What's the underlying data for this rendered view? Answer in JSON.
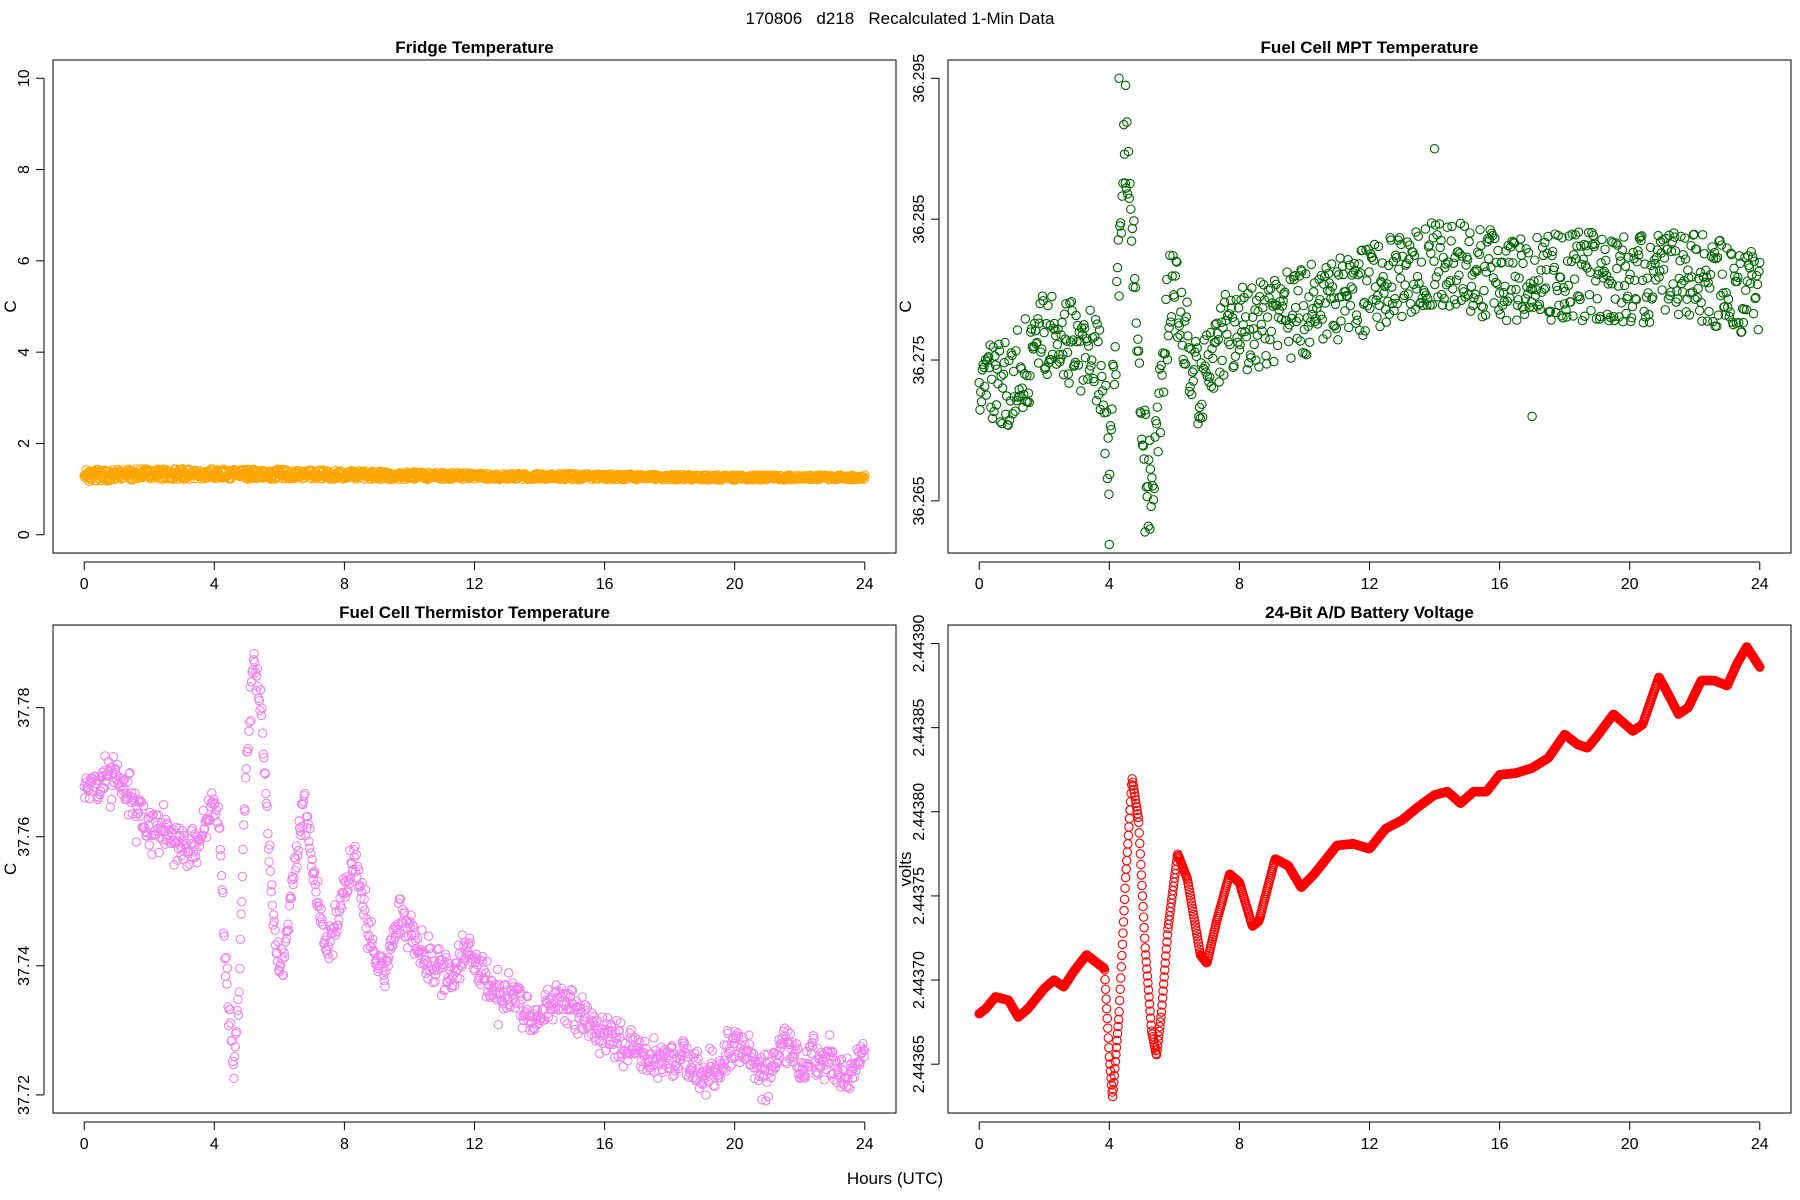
{
  "figure": {
    "title": "170806   d218   Recalculated 1-Min Data",
    "xlabel": "Hours (UTC)"
  },
  "chart_data": [
    {
      "id": "fridge",
      "type": "scatter",
      "title": "Fridge Temperature",
      "xlabel": "",
      "ylabel": "C",
      "xlim": [
        -0.96,
        24.96
      ],
      "ylim": [
        -0.4,
        10.4
      ],
      "xticks": [
        0,
        4,
        8,
        12,
        16,
        20,
        24
      ],
      "xtick_labels": [
        "0",
        "4",
        "8",
        "12",
        "16",
        "20",
        "24"
      ],
      "yticks": [
        0,
        2,
        4,
        6,
        8,
        10
      ],
      "ytick_labels": [
        "0",
        "2",
        "4",
        "6",
        "8",
        "10"
      ],
      "color": "#FFA500",
      "grid": false,
      "model": {
        "kind": "band",
        "x_range": [
          0,
          24
        ],
        "n": 1440,
        "trend": [
          [
            0,
            1.3
          ],
          [
            4,
            1.34
          ],
          [
            8,
            1.31
          ],
          [
            12,
            1.28
          ],
          [
            16,
            1.27
          ],
          [
            20,
            1.25
          ],
          [
            24,
            1.26
          ]
        ],
        "spread": [
          [
            0,
            0.13
          ],
          [
            6,
            0.11
          ],
          [
            12,
            0.07
          ],
          [
            24,
            0.05
          ]
        ]
      }
    },
    {
      "id": "mpt",
      "type": "scatter",
      "title": "Fuel Cell MPT Temperature",
      "xlabel": "",
      "ylabel": "C",
      "xlim": [
        -0.96,
        24.96
      ],
      "ylim": [
        36.2613,
        36.2963
      ],
      "xticks": [
        0,
        4,
        8,
        12,
        16,
        20,
        24
      ],
      "xtick_labels": [
        "0",
        "4",
        "8",
        "12",
        "16",
        "20",
        "24"
      ],
      "yticks": [
        36.265,
        36.275,
        36.285,
        36.295
      ],
      "ytick_labels": [
        "36.265",
        "36.275",
        "36.285",
        "36.295"
      ],
      "color": "#006400",
      "grid": false,
      "model": {
        "kind": "noisy",
        "x_range": [
          0,
          24
        ],
        "n": 1000,
        "noise": 0.0032,
        "noise_mode": "uniform",
        "trend": [
          [
            0,
            36.2735
          ],
          [
            1,
            36.2735
          ],
          [
            2,
            36.2765
          ],
          [
            3,
            36.2762
          ],
          [
            3.7,
            36.2748
          ],
          [
            4.0,
            36.268
          ],
          [
            4.25,
            36.279
          ],
          [
            4.45,
            36.2905
          ],
          [
            4.65,
            36.287
          ],
          [
            4.95,
            36.273
          ],
          [
            5.25,
            36.266
          ],
          [
            5.55,
            36.272
          ],
          [
            5.9,
            36.281
          ],
          [
            6.2,
            36.279
          ],
          [
            6.7,
            36.273
          ],
          [
            7.3,
            36.2765
          ],
          [
            8,
            36.277
          ],
          [
            10,
            36.2785
          ],
          [
            12,
            36.28
          ],
          [
            14,
            36.282
          ],
          [
            16,
            36.281
          ],
          [
            18,
            36.281
          ],
          [
            20,
            36.2808
          ],
          [
            22,
            36.281
          ],
          [
            24,
            36.2795
          ]
        ],
        "extremes": [
          [
            5.1,
            36.2628
          ],
          [
            5.2,
            36.2632
          ],
          [
            5.25,
            36.263
          ],
          [
            4.0,
            36.2619
          ],
          [
            4.3,
            36.295
          ],
          [
            4.5,
            36.2945
          ],
          [
            14.0,
            36.29
          ],
          [
            17.0,
            36.271
          ]
        ]
      }
    },
    {
      "id": "thermistor",
      "type": "scatter",
      "title": "Fuel Cell Thermistor Temperature",
      "xlabel": "",
      "ylabel": "C",
      "xlim": [
        -0.96,
        24.96
      ],
      "ylim": [
        37.7172,
        37.7928
      ],
      "xticks": [
        0,
        4,
        8,
        12,
        16,
        20,
        24
      ],
      "xtick_labels": [
        "0",
        "4",
        "8",
        "12",
        "16",
        "20",
        "24"
      ],
      "yticks": [
        37.72,
        37.74,
        37.76,
        37.78
      ],
      "ytick_labels": [
        "37.72",
        "37.74",
        "37.76",
        "37.78"
      ],
      "color": "#EE82EE",
      "grid": false,
      "model": {
        "kind": "noisy",
        "x_range": [
          0,
          24
        ],
        "n": 1200,
        "noise": 0.0022,
        "noise_mode": "normal",
        "trend": [
          [
            0,
            37.768
          ],
          [
            0.5,
            37.768
          ],
          [
            1,
            37.77
          ],
          [
            1.5,
            37.765
          ],
          [
            2,
            37.762
          ],
          [
            2.5,
            37.761
          ],
          [
            3,
            37.758
          ],
          [
            3.5,
            37.759
          ],
          [
            4,
            37.765
          ],
          [
            4.15,
            37.762
          ],
          [
            4.35,
            37.74
          ],
          [
            4.6,
            37.724
          ],
          [
            4.75,
            37.735
          ],
          [
            4.95,
            37.768
          ],
          [
            5.2,
            37.787
          ],
          [
            5.45,
            37.78
          ],
          [
            5.65,
            37.76
          ],
          [
            5.85,
            37.745
          ],
          [
            6.1,
            37.738
          ],
          [
            6.4,
            37.753
          ],
          [
            6.75,
            37.766
          ],
          [
            7.1,
            37.752
          ],
          [
            7.5,
            37.742
          ],
          [
            7.9,
            37.75
          ],
          [
            8.3,
            37.757
          ],
          [
            8.7,
            37.746
          ],
          [
            9.2,
            37.738
          ],
          [
            9.7,
            37.748
          ],
          [
            10.2,
            37.744
          ],
          [
            10.8,
            37.74
          ],
          [
            11.3,
            37.738
          ],
          [
            11.8,
            37.743
          ],
          [
            12.5,
            37.736
          ],
          [
            13.2,
            37.735
          ],
          [
            13.8,
            37.731
          ],
          [
            14.5,
            37.735
          ],
          [
            15.2,
            37.733
          ],
          [
            15.8,
            37.73
          ],
          [
            16.5,
            37.728
          ],
          [
            17,
            37.727
          ],
          [
            17.8,
            37.725
          ],
          [
            18.5,
            37.726
          ],
          [
            19,
            37.723
          ],
          [
            19.5,
            37.724
          ],
          [
            20,
            37.728
          ],
          [
            20.5,
            37.726
          ],
          [
            21,
            37.722
          ],
          [
            21.5,
            37.729
          ],
          [
            22,
            37.724
          ],
          [
            22.5,
            37.726
          ],
          [
            23,
            37.725
          ],
          [
            23.5,
            37.722
          ],
          [
            24,
            37.728
          ]
        ]
      }
    },
    {
      "id": "battery",
      "type": "scatter",
      "title": "24-Bit A/D Battery Voltage",
      "xlabel": "",
      "ylabel": "volts",
      "xlim": [
        -0.96,
        24.96
      ],
      "ylim": [
        2.443621,
        2.443911
      ],
      "xticks": [
        0,
        4,
        8,
        12,
        16,
        20,
        24
      ],
      "xtick_labels": [
        "0",
        "4",
        "8",
        "12",
        "16",
        "20",
        "24"
      ],
      "yticks": [
        2.44365,
        2.4437,
        2.44375,
        2.4438,
        2.44385,
        2.4439
      ],
      "ytick_labels": [
        "2.44365",
        "2.44370",
        "2.44375",
        "2.44380",
        "2.44385",
        "2.44390"
      ],
      "color": "#FF0000",
      "grid": false,
      "model": {
        "kind": "smooth",
        "x_range": [
          0,
          24
        ],
        "n": 1440,
        "trend": [
          [
            0,
            2.44368
          ],
          [
            0.2,
            2.443683
          ],
          [
            0.5,
            2.44369
          ],
          [
            0.9,
            2.443688
          ],
          [
            1.2,
            2.443678
          ],
          [
            1.5,
            2.443683
          ],
          [
            2,
            2.443695
          ],
          [
            2.3,
            2.4437
          ],
          [
            2.6,
            2.443696
          ],
          [
            2.9,
            2.443705
          ],
          [
            3.3,
            2.443715
          ],
          [
            3.7,
            2.443709
          ],
          [
            3.85,
            2.443707
          ],
          [
            4.0,
            2.443655
          ],
          [
            4.1,
            2.44363
          ],
          [
            4.3,
            2.44368
          ],
          [
            4.5,
            2.44376
          ],
          [
            4.7,
            2.44382
          ],
          [
            4.9,
            2.443795
          ],
          [
            5.1,
            2.44372
          ],
          [
            5.3,
            2.44367
          ],
          [
            5.45,
            2.443655
          ],
          [
            5.6,
            2.44368
          ],
          [
            5.8,
            2.44373
          ],
          [
            6.1,
            2.443775
          ],
          [
            6.4,
            2.44376
          ],
          [
            6.8,
            2.443715
          ],
          [
            7.0,
            2.44371
          ],
          [
            7.3,
            2.443735
          ],
          [
            7.7,
            2.443763
          ],
          [
            8.0,
            2.443758
          ],
          [
            8.4,
            2.443732
          ],
          [
            8.6,
            2.443735
          ],
          [
            9.1,
            2.443772
          ],
          [
            9.5,
            2.443768
          ],
          [
            9.9,
            2.443755
          ],
          [
            10.3,
            2.443763
          ],
          [
            11,
            2.44378
          ],
          [
            11.5,
            2.443781
          ],
          [
            12,
            2.443778
          ],
          [
            12.5,
            2.44379
          ],
          [
            13,
            2.443795
          ],
          [
            13.5,
            2.443803
          ],
          [
            14,
            2.44381
          ],
          [
            14.4,
            2.443812
          ],
          [
            14.8,
            2.443805
          ],
          [
            15.2,
            2.443812
          ],
          [
            15.6,
            2.443812
          ],
          [
            16,
            2.443822
          ],
          [
            16.5,
            2.443823
          ],
          [
            17,
            2.443826
          ],
          [
            17.5,
            2.443832
          ],
          [
            18,
            2.443846
          ],
          [
            18.4,
            2.44384
          ],
          [
            18.7,
            2.443838
          ],
          [
            19,
            2.443845
          ],
          [
            19.5,
            2.443858
          ],
          [
            20.1,
            2.443848
          ],
          [
            20.4,
            2.443852
          ],
          [
            20.9,
            2.44388
          ],
          [
            21.1,
            2.443873
          ],
          [
            21.5,
            2.443858
          ],
          [
            21.8,
            2.443862
          ],
          [
            22.2,
            2.443878
          ],
          [
            22.6,
            2.443878
          ],
          [
            23,
            2.443875
          ],
          [
            23.3,
            2.443888
          ],
          [
            23.6,
            2.443898
          ],
          [
            24,
            2.443886
          ]
        ]
      }
    }
  ]
}
